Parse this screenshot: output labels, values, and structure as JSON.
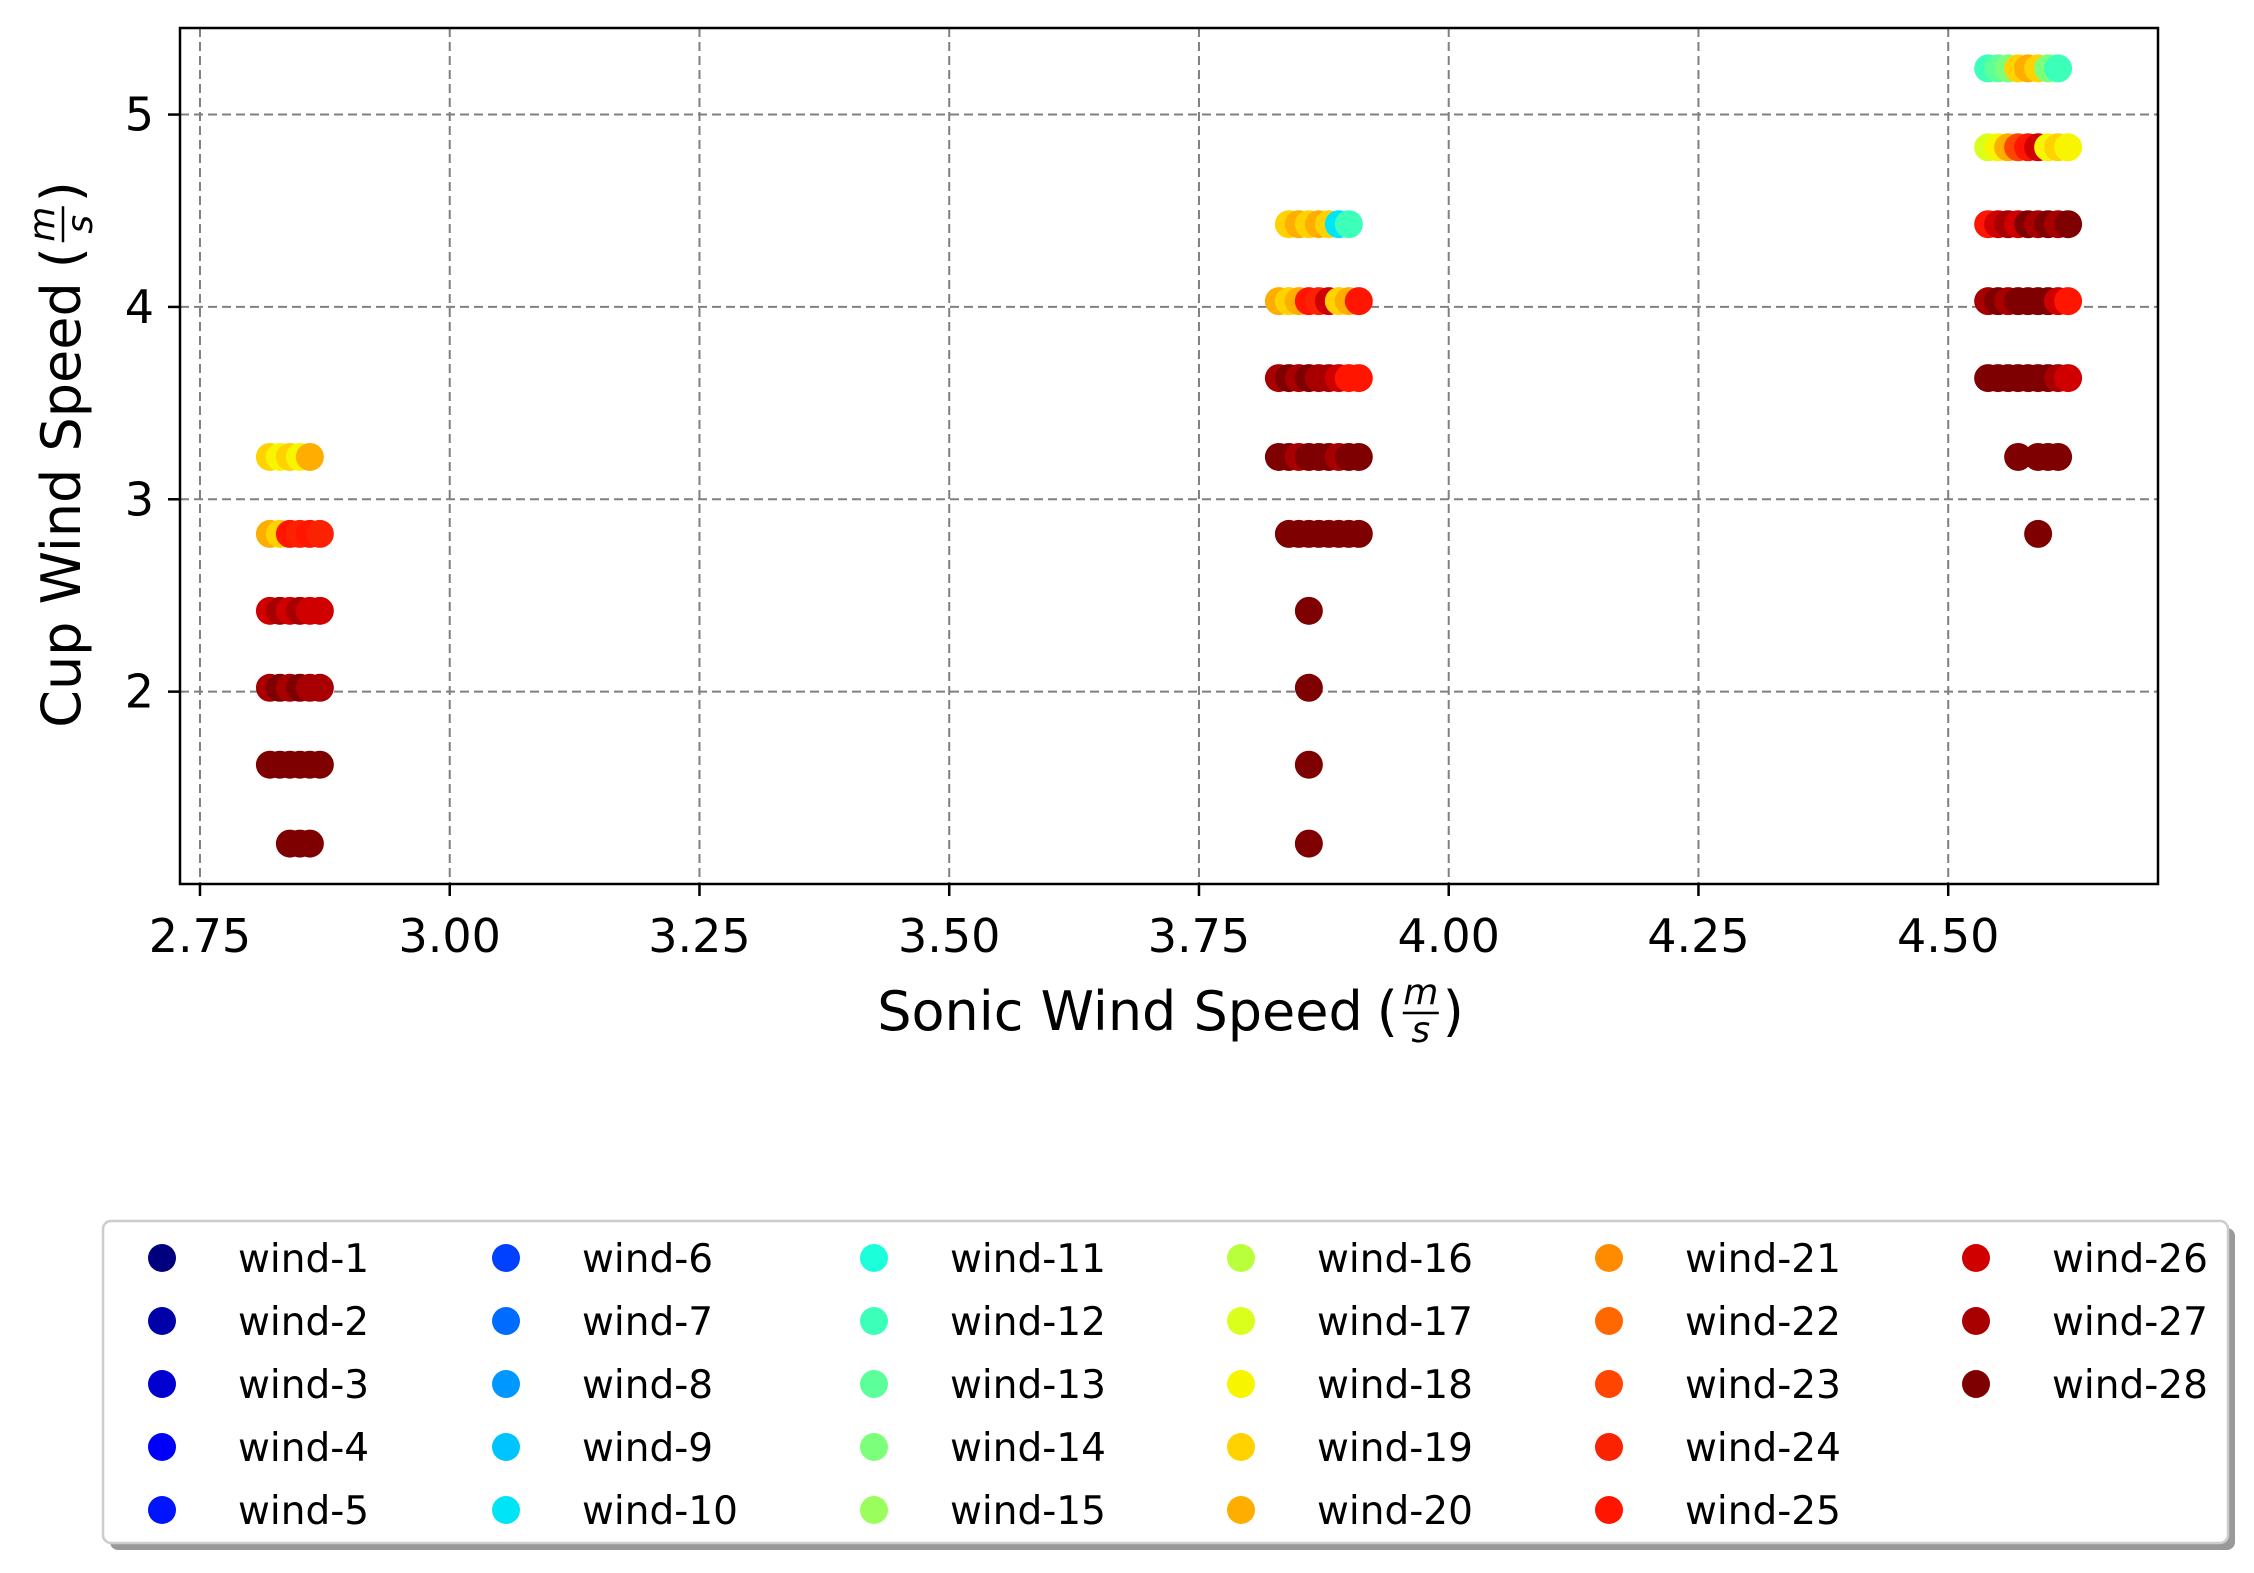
{
  "chart_data": {
    "type": "scatter",
    "title": "",
    "xlabel": "Sonic Wind Speed",
    "ylabel": "Cup Wind Speed",
    "unit_numerator": "m",
    "unit_denominator": "s",
    "xlim": [
      2.73,
      4.71
    ],
    "ylim": [
      1.0,
      5.45
    ],
    "xticks": [
      2.75,
      3.0,
      3.25,
      3.5,
      3.75,
      4.0,
      4.25,
      4.5
    ],
    "xtick_labels": [
      "2.75",
      "3.00",
      "3.25",
      "3.50",
      "3.75",
      "4.00",
      "4.25",
      "4.50"
    ],
    "yticks": [
      2,
      3,
      4,
      5
    ],
    "ytick_labels": [
      "2",
      "3",
      "4",
      "5"
    ],
    "grid": true,
    "legend_position": "below",
    "legend_columns": 6,
    "series": [
      {
        "name": "wind-1",
        "color": "#00007f"
      },
      {
        "name": "wind-2",
        "color": "#0000a8"
      },
      {
        "name": "wind-3",
        "color": "#0000d1"
      },
      {
        "name": "wind-4",
        "color": "#0000fa"
      },
      {
        "name": "wind-5",
        "color": "#0014ff"
      },
      {
        "name": "wind-6",
        "color": "#0040ff"
      },
      {
        "name": "wind-7",
        "color": "#006cff"
      },
      {
        "name": "wind-8",
        "color": "#0098ff"
      },
      {
        "name": "wind-9",
        "color": "#00c4ff"
      },
      {
        "name": "wind-10",
        "color": "#00e4f8"
      },
      {
        "name": "wind-11",
        "color": "#1cffdb"
      },
      {
        "name": "wind-12",
        "color": "#3cffba"
      },
      {
        "name": "wind-13",
        "color": "#5cff9a"
      },
      {
        "name": "wind-14",
        "color": "#7cff7a"
      },
      {
        "name": "wind-15",
        "color": "#9aff5c"
      },
      {
        "name": "wind-16",
        "color": "#baff3c"
      },
      {
        "name": "wind-17",
        "color": "#dbff1c"
      },
      {
        "name": "wind-18",
        "color": "#f8f500"
      },
      {
        "name": "wind-19",
        "color": "#ffd200"
      },
      {
        "name": "wind-20",
        "color": "#ffae00"
      },
      {
        "name": "wind-21",
        "color": "#ff8b00"
      },
      {
        "name": "wind-22",
        "color": "#ff6800"
      },
      {
        "name": "wind-23",
        "color": "#ff4500"
      },
      {
        "name": "wind-24",
        "color": "#fa2200"
      },
      {
        "name": "wind-25",
        "color": "#ff1500"
      },
      {
        "name": "wind-26",
        "color": "#d10000"
      },
      {
        "name": "wind-27",
        "color": "#a80000"
      },
      {
        "name": "wind-28",
        "color": "#7f0000"
      }
    ],
    "points": [
      {
        "x": 2.82,
        "y": 3.22,
        "s": 19
      },
      {
        "x": 2.83,
        "y": 3.22,
        "s": 18
      },
      {
        "x": 2.84,
        "y": 3.22,
        "s": 19
      },
      {
        "x": 2.85,
        "y": 3.22,
        "s": 18
      },
      {
        "x": 2.86,
        "y": 3.22,
        "s": 20
      },
      {
        "x": 2.82,
        "y": 2.82,
        "s": 20
      },
      {
        "x": 2.83,
        "y": 2.82,
        "s": 19
      },
      {
        "x": 2.84,
        "y": 2.82,
        "s": 25
      },
      {
        "x": 2.85,
        "y": 2.82,
        "s": 24
      },
      {
        "x": 2.86,
        "y": 2.82,
        "s": 25
      },
      {
        "x": 2.87,
        "y": 2.82,
        "s": 24
      },
      {
        "x": 2.82,
        "y": 2.42,
        "s": 26
      },
      {
        "x": 2.83,
        "y": 2.42,
        "s": 27
      },
      {
        "x": 2.84,
        "y": 2.42,
        "s": 26
      },
      {
        "x": 2.85,
        "y": 2.42,
        "s": 27
      },
      {
        "x": 2.86,
        "y": 2.42,
        "s": 26
      },
      {
        "x": 2.87,
        "y": 2.42,
        "s": 26
      },
      {
        "x": 2.82,
        "y": 2.02,
        "s": 27
      },
      {
        "x": 2.83,
        "y": 2.02,
        "s": 28
      },
      {
        "x": 2.84,
        "y": 2.02,
        "s": 27
      },
      {
        "x": 2.85,
        "y": 2.02,
        "s": 28
      },
      {
        "x": 2.86,
        "y": 2.02,
        "s": 27
      },
      {
        "x": 2.87,
        "y": 2.02,
        "s": 27
      },
      {
        "x": 2.82,
        "y": 1.62,
        "s": 28
      },
      {
        "x": 2.83,
        "y": 1.62,
        "s": 28
      },
      {
        "x": 2.84,
        "y": 1.62,
        "s": 28
      },
      {
        "x": 2.85,
        "y": 1.62,
        "s": 28
      },
      {
        "x": 2.86,
        "y": 1.62,
        "s": 28
      },
      {
        "x": 2.87,
        "y": 1.62,
        "s": 28
      },
      {
        "x": 2.84,
        "y": 1.21,
        "s": 28
      },
      {
        "x": 2.85,
        "y": 1.21,
        "s": 28
      },
      {
        "x": 2.86,
        "y": 1.21,
        "s": 28
      },
      {
        "x": 3.84,
        "y": 4.43,
        "s": 19
      },
      {
        "x": 3.85,
        "y": 4.43,
        "s": 20
      },
      {
        "x": 3.86,
        "y": 4.43,
        "s": 19
      },
      {
        "x": 3.87,
        "y": 4.43,
        "s": 20
      },
      {
        "x": 3.88,
        "y": 4.43,
        "s": 19
      },
      {
        "x": 3.89,
        "y": 4.43,
        "s": 10
      },
      {
        "x": 3.9,
        "y": 4.43,
        "s": 12
      },
      {
        "x": 3.83,
        "y": 4.03,
        "s": 20
      },
      {
        "x": 3.84,
        "y": 4.03,
        "s": 19
      },
      {
        "x": 3.85,
        "y": 4.03,
        "s": 20
      },
      {
        "x": 3.86,
        "y": 4.03,
        "s": 25
      },
      {
        "x": 3.87,
        "y": 4.03,
        "s": 24
      },
      {
        "x": 3.88,
        "y": 4.03,
        "s": 26
      },
      {
        "x": 3.89,
        "y": 4.03,
        "s": 19
      },
      {
        "x": 3.9,
        "y": 4.03,
        "s": 20
      },
      {
        "x": 3.91,
        "y": 4.03,
        "s": 25
      },
      {
        "x": 3.83,
        "y": 3.63,
        "s": 27
      },
      {
        "x": 3.84,
        "y": 3.63,
        "s": 28
      },
      {
        "x": 3.85,
        "y": 3.63,
        "s": 27
      },
      {
        "x": 3.86,
        "y": 3.63,
        "s": 28
      },
      {
        "x": 3.87,
        "y": 3.63,
        "s": 27
      },
      {
        "x": 3.88,
        "y": 3.63,
        "s": 27
      },
      {
        "x": 3.89,
        "y": 3.63,
        "s": 26
      },
      {
        "x": 3.9,
        "y": 3.63,
        "s": 25
      },
      {
        "x": 3.91,
        "y": 3.63,
        "s": 25
      },
      {
        "x": 3.83,
        "y": 3.22,
        "s": 28
      },
      {
        "x": 3.84,
        "y": 3.22,
        "s": 28
      },
      {
        "x": 3.85,
        "y": 3.22,
        "s": 27
      },
      {
        "x": 3.86,
        "y": 3.22,
        "s": 28
      },
      {
        "x": 3.87,
        "y": 3.22,
        "s": 28
      },
      {
        "x": 3.88,
        "y": 3.22,
        "s": 28
      },
      {
        "x": 3.89,
        "y": 3.22,
        "s": 27
      },
      {
        "x": 3.9,
        "y": 3.22,
        "s": 28
      },
      {
        "x": 3.91,
        "y": 3.22,
        "s": 28
      },
      {
        "x": 3.84,
        "y": 2.82,
        "s": 28
      },
      {
        "x": 3.85,
        "y": 2.82,
        "s": 28
      },
      {
        "x": 3.86,
        "y": 2.82,
        "s": 28
      },
      {
        "x": 3.87,
        "y": 2.82,
        "s": 28
      },
      {
        "x": 3.88,
        "y": 2.82,
        "s": 28
      },
      {
        "x": 3.89,
        "y": 2.82,
        "s": 28
      },
      {
        "x": 3.9,
        "y": 2.82,
        "s": 28
      },
      {
        "x": 3.91,
        "y": 2.82,
        "s": 28
      },
      {
        "x": 3.86,
        "y": 2.42,
        "s": 28
      },
      {
        "x": 3.86,
        "y": 2.02,
        "s": 28
      },
      {
        "x": 3.86,
        "y": 1.62,
        "s": 28
      },
      {
        "x": 3.86,
        "y": 1.21,
        "s": 28
      },
      {
        "x": 4.54,
        "y": 5.24,
        "s": 12
      },
      {
        "x": 4.55,
        "y": 5.24,
        "s": 13
      },
      {
        "x": 4.56,
        "y": 5.24,
        "s": 14
      },
      {
        "x": 4.57,
        "y": 5.24,
        "s": 19
      },
      {
        "x": 4.58,
        "y": 5.24,
        "s": 20
      },
      {
        "x": 4.59,
        "y": 5.24,
        "s": 19
      },
      {
        "x": 4.6,
        "y": 5.24,
        "s": 14
      },
      {
        "x": 4.61,
        "y": 5.24,
        "s": 12
      },
      {
        "x": 4.54,
        "y": 4.83,
        "s": 17
      },
      {
        "x": 4.55,
        "y": 4.83,
        "s": 18
      },
      {
        "x": 4.56,
        "y": 4.83,
        "s": 20
      },
      {
        "x": 4.57,
        "y": 4.83,
        "s": 23
      },
      {
        "x": 4.58,
        "y": 4.83,
        "s": 25
      },
      {
        "x": 4.59,
        "y": 4.83,
        "s": 26
      },
      {
        "x": 4.6,
        "y": 4.83,
        "s": 18
      },
      {
        "x": 4.61,
        "y": 4.83,
        "s": 19
      },
      {
        "x": 4.62,
        "y": 4.83,
        "s": 18
      },
      {
        "x": 4.54,
        "y": 4.43,
        "s": 25
      },
      {
        "x": 4.55,
        "y": 4.43,
        "s": 26
      },
      {
        "x": 4.56,
        "y": 4.43,
        "s": 27
      },
      {
        "x": 4.57,
        "y": 4.43,
        "s": 26
      },
      {
        "x": 4.58,
        "y": 4.43,
        "s": 28
      },
      {
        "x": 4.59,
        "y": 4.43,
        "s": 27
      },
      {
        "x": 4.6,
        "y": 4.43,
        "s": 28
      },
      {
        "x": 4.61,
        "y": 4.43,
        "s": 27
      },
      {
        "x": 4.62,
        "y": 4.43,
        "s": 28
      },
      {
        "x": 4.54,
        "y": 4.03,
        "s": 27
      },
      {
        "x": 4.55,
        "y": 4.03,
        "s": 28
      },
      {
        "x": 4.56,
        "y": 4.03,
        "s": 27
      },
      {
        "x": 4.57,
        "y": 4.03,
        "s": 28
      },
      {
        "x": 4.58,
        "y": 4.03,
        "s": 28
      },
      {
        "x": 4.59,
        "y": 4.03,
        "s": 28
      },
      {
        "x": 4.6,
        "y": 4.03,
        "s": 28
      },
      {
        "x": 4.61,
        "y": 4.03,
        "s": 26
      },
      {
        "x": 4.62,
        "y": 4.03,
        "s": 25
      },
      {
        "x": 4.54,
        "y": 3.63,
        "s": 28
      },
      {
        "x": 4.55,
        "y": 3.63,
        "s": 28
      },
      {
        "x": 4.56,
        "y": 3.63,
        "s": 28
      },
      {
        "x": 4.57,
        "y": 3.63,
        "s": 28
      },
      {
        "x": 4.58,
        "y": 3.63,
        "s": 28
      },
      {
        "x": 4.59,
        "y": 3.63,
        "s": 28
      },
      {
        "x": 4.6,
        "y": 3.63,
        "s": 28
      },
      {
        "x": 4.61,
        "y": 3.63,
        "s": 27
      },
      {
        "x": 4.62,
        "y": 3.63,
        "s": 26
      },
      {
        "x": 4.57,
        "y": 3.22,
        "s": 28
      },
      {
        "x": 4.59,
        "y": 3.22,
        "s": 28
      },
      {
        "x": 4.6,
        "y": 3.22,
        "s": 28
      },
      {
        "x": 4.61,
        "y": 3.22,
        "s": 28
      },
      {
        "x": 4.59,
        "y": 2.82,
        "s": 28
      }
    ]
  }
}
